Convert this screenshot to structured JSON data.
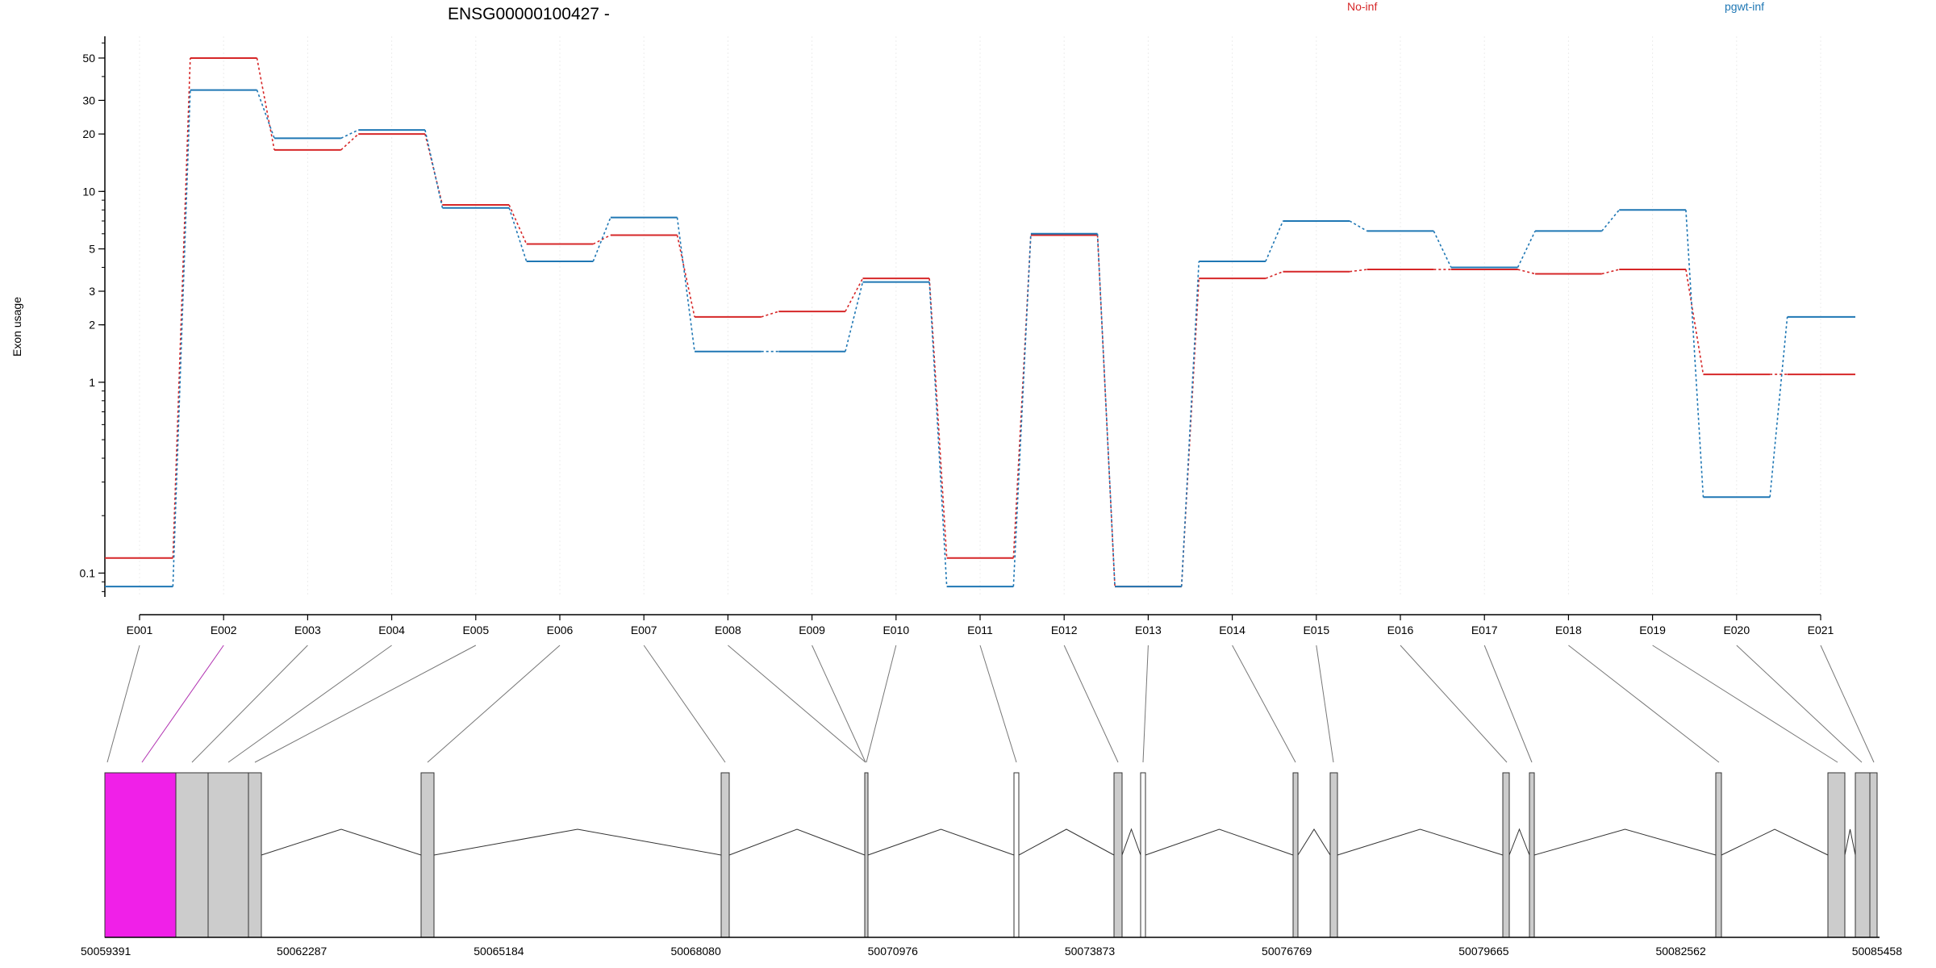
{
  "chart_data": {
    "type": "line",
    "title": "ENSG00000100427 -",
    "ylabel": "Exon usage",
    "xlabel": "",
    "yscale": "log",
    "ylim": [
      0.075,
      65
    ],
    "yticks": [
      0.1,
      1,
      2,
      3,
      5,
      10,
      20,
      30,
      50
    ],
    "grid": "vertical",
    "legend_position": "top",
    "categories": [
      "E001",
      "E002",
      "E003",
      "E004",
      "E005",
      "E006",
      "E007",
      "E008",
      "E009",
      "E010",
      "E011",
      "E012",
      "E013",
      "E014",
      "E015",
      "E016",
      "E017",
      "E018",
      "E019",
      "E020",
      "E021"
    ],
    "series": [
      {
        "name": "No-inf",
        "color": "#d62728",
        "values": [
          0.12,
          50,
          16.5,
          20,
          8.5,
          5.3,
          5.9,
          2.2,
          2.35,
          3.5,
          0.12,
          5.9,
          0.085,
          3.5,
          3.8,
          3.9,
          3.9,
          3.7,
          3.9,
          1.1,
          1.1
        ]
      },
      {
        "name": "pgwt-inf",
        "color": "#1f77b4",
        "values": [
          0.085,
          34,
          19,
          21,
          8.2,
          4.3,
          7.3,
          1.45,
          1.45,
          3.35,
          0.085,
          6.0,
          0.085,
          4.3,
          7.0,
          6.2,
          4.0,
          6.2,
          8.0,
          0.25,
          2.2
        ]
      }
    ],
    "gene_model": {
      "coordinate_ticks": [
        "50059391",
        "50062287",
        "50065184",
        "50068080",
        "50070976",
        "50073873",
        "50076769",
        "50079665",
        "50082562",
        "50085458"
      ],
      "highlight_color": "#f020e8",
      "exon_color": "#cccccc"
    }
  }
}
